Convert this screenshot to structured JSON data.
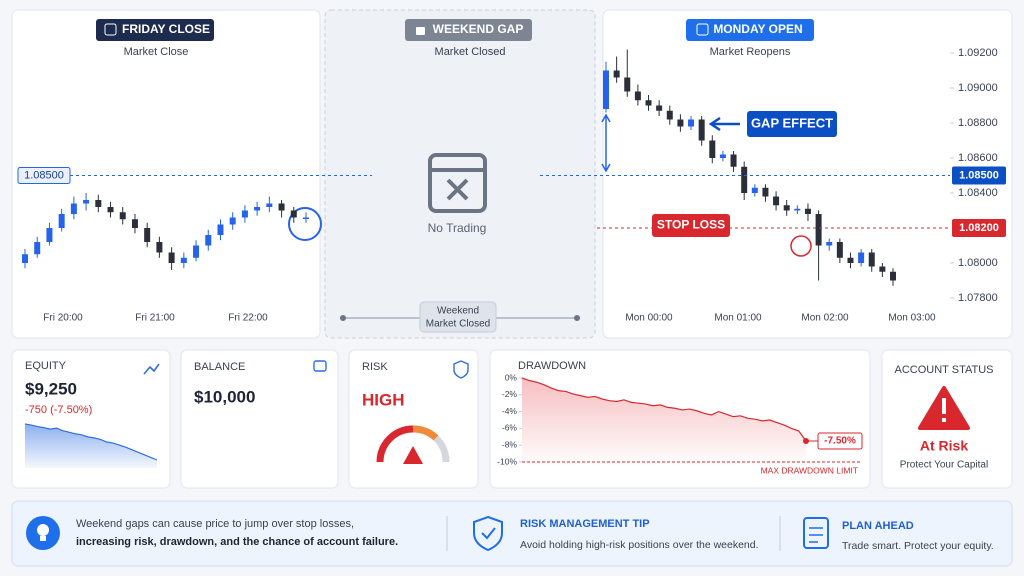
{
  "panels": {
    "friday": {
      "badge": "FRIDAY CLOSE",
      "subtitle": "Market Close"
    },
    "weekend": {
      "badge": "WEEKEND GAP",
      "subtitle": "Market Closed",
      "center": "No Trading",
      "slider": [
        "Weekend",
        "Market Closed"
      ]
    },
    "monday": {
      "badge": "MONDAY OPEN",
      "subtitle": "Market Reopens",
      "annotation": "GAP EFFECT"
    }
  },
  "chart_data": [
    {
      "type": "candlestick",
      "up_color": "#2563eb",
      "down_color": "#2b2f3a",
      "ylim": [
        1.078,
        1.092
      ],
      "level": {
        "value": 1.085,
        "label": "1.08500"
      },
      "x_labels": [
        "Fri 20:00",
        "Fri 21:00",
        "Fri 22:00"
      ],
      "candles": [
        [
          1.08,
          1.0808,
          1.0797,
          1.0805
        ],
        [
          1.0805,
          1.0815,
          1.0803,
          1.0812
        ],
        [
          1.0812,
          1.0823,
          1.081,
          1.082
        ],
        [
          1.082,
          1.0831,
          1.0818,
          1.0828
        ],
        [
          1.0828,
          1.0838,
          1.0825,
          1.0834
        ],
        [
          1.0834,
          1.084,
          1.083,
          1.0836
        ],
        [
          1.0836,
          1.0839,
          1.0829,
          1.0832
        ],
        [
          1.0832,
          1.0835,
          1.0826,
          1.0829
        ],
        [
          1.0829,
          1.0832,
          1.0822,
          1.0825
        ],
        [
          1.0825,
          1.0828,
          1.0817,
          1.082
        ],
        [
          1.082,
          1.0823,
          1.0809,
          1.0812
        ],
        [
          1.0812,
          1.0815,
          1.0803,
          1.0806
        ],
        [
          1.0806,
          1.0809,
          1.0796,
          1.08
        ],
        [
          1.08,
          1.0806,
          1.0797,
          1.0803
        ],
        [
          1.0803,
          1.0813,
          1.0801,
          1.081
        ],
        [
          1.081,
          1.0819,
          1.0807,
          1.0816
        ],
        [
          1.0816,
          1.0825,
          1.0813,
          1.0822
        ],
        [
          1.0822,
          1.0829,
          1.0819,
          1.0826
        ],
        [
          1.0826,
          1.0833,
          1.0823,
          1.083
        ],
        [
          1.083,
          1.0835,
          1.0827,
          1.0832
        ],
        [
          1.0832,
          1.0838,
          1.0829,
          1.0834
        ],
        [
          1.0834,
          1.0836,
          1.0826,
          1.083
        ],
        [
          1.083,
          1.0832,
          1.0823,
          1.0826
        ],
        [
          1.0826,
          1.0829,
          1.0823,
          1.0826
        ]
      ]
    },
    {
      "type": "candlestick",
      "up_color": "#2563eb",
      "down_color": "#2b2f3a",
      "ylim": [
        1.078,
        1.092
      ],
      "yticks": [
        {
          "value": 1.092,
          "label": "1.09200"
        },
        {
          "value": 1.09,
          "label": "1.09000"
        },
        {
          "value": 1.088,
          "label": "1.08800"
        },
        {
          "value": 1.086,
          "label": "1.08600"
        },
        {
          "value": 1.084,
          "label": "1.08400"
        },
        {
          "value": 1.08,
          "label": "1.08000"
        },
        {
          "value": 1.078,
          "label": "1.07800"
        }
      ],
      "level": {
        "value": 1.085,
        "label": "1.08500"
      },
      "stop_loss": {
        "name": "STOP LOSS",
        "value": 1.082,
        "label": "1.08200"
      },
      "x_labels": [
        "Mon 00:00",
        "Mon 01:00",
        "Mon 02:00",
        "Mon 03:00"
      ],
      "candles": [
        [
          1.0888,
          1.0915,
          1.0886,
          1.091
        ],
        [
          1.091,
          1.0918,
          1.0903,
          1.0906
        ],
        [
          1.0906,
          1.0922,
          1.0895,
          1.0898
        ],
        [
          1.0898,
          1.0902,
          1.089,
          1.0893
        ],
        [
          1.0893,
          1.0896,
          1.0887,
          1.089
        ],
        [
          1.089,
          1.0893,
          1.0884,
          1.0887
        ],
        [
          1.0887,
          1.089,
          1.0879,
          1.0882
        ],
        [
          1.0882,
          1.0885,
          1.0875,
          1.0878
        ],
        [
          1.0878,
          1.0884,
          1.0876,
          1.0882
        ],
        [
          1.0882,
          1.0884,
          1.0867,
          1.087
        ],
        [
          1.087,
          1.0873,
          1.0857,
          1.086
        ],
        [
          1.086,
          1.0864,
          1.0858,
          1.0862
        ],
        [
          1.0862,
          1.0864,
          1.0852,
          1.0855
        ],
        [
          1.0855,
          1.0858,
          1.0836,
          1.084
        ],
        [
          1.084,
          1.0845,
          1.0838,
          1.0843
        ],
        [
          1.0843,
          1.0845,
          1.0835,
          1.0838
        ],
        [
          1.0838,
          1.0841,
          1.083,
          1.0833
        ],
        [
          1.0833,
          1.0836,
          1.0827,
          1.083
        ],
        [
          1.083,
          1.0833,
          1.0828,
          1.0831
        ],
        [
          1.0831,
          1.0834,
          1.0824,
          1.0828
        ],
        [
          1.0828,
          1.083,
          1.079,
          1.081
        ],
        [
          1.081,
          1.0814,
          1.0807,
          1.0812
        ],
        [
          1.0812,
          1.0814,
          1.08,
          1.0803
        ],
        [
          1.0803,
          1.0806,
          1.0797,
          1.08
        ],
        [
          1.08,
          1.0808,
          1.0798,
          1.0806
        ],
        [
          1.0806,
          1.0808,
          1.0795,
          1.0798
        ],
        [
          1.0798,
          1.08,
          1.0792,
          1.0795
        ],
        [
          1.0795,
          1.0797,
          1.0787,
          1.079
        ]
      ]
    },
    {
      "type": "line",
      "title": "DRAWDOWN",
      "color": "#d9272e",
      "ylim": [
        -10,
        0
      ],
      "yticks": [
        {
          "value": 0,
          "label": "0%"
        },
        {
          "value": -2,
          "label": "-2%"
        },
        {
          "value": -4,
          "label": "-4%"
        },
        {
          "value": -6,
          "label": "-6%"
        },
        {
          "value": -8,
          "label": "-8%"
        },
        {
          "value": -10,
          "label": "-10%"
        }
      ],
      "limit": {
        "value": -10,
        "label": "MAX DRAWDOWN LIMIT"
      },
      "values": [
        0,
        -0.3,
        -0.5,
        -0.8,
        -1.2,
        -1.5,
        -1.6,
        -1.9,
        -2.1,
        -2.3,
        -2.2,
        -2.5,
        -2.7,
        -2.8,
        -2.6,
        -2.9,
        -3.0,
        -3.1,
        -3.3,
        -3.2,
        -3.5,
        -3.6,
        -3.8,
        -3.7,
        -3.9,
        -4.2,
        -4.4,
        -4.0,
        -4.3,
        -4.6,
        -4.5,
        -4.8,
        -4.9,
        -5.1,
        -5.0,
        -5.3,
        -5.6,
        -6.0,
        -6.3,
        -7.5
      ],
      "value_labels": [
        null,
        null,
        null,
        null,
        null,
        null,
        null,
        null,
        null,
        null,
        null,
        null,
        null,
        null,
        null,
        null,
        null,
        null,
        null,
        null,
        null,
        null,
        null,
        null,
        null,
        null,
        null,
        null,
        null,
        null,
        null,
        null,
        null,
        null,
        null,
        null,
        null,
        null,
        null,
        "-7.50%"
      ]
    },
    {
      "type": "area",
      "color": "#2f6fe0",
      "values": [
        9950,
        9930,
        9900,
        9880,
        9850,
        9870,
        9820,
        9790,
        9760,
        9740,
        9700,
        9680,
        9650,
        9600,
        9580,
        9540,
        9500,
        9450,
        9400,
        9350,
        9300,
        9250
      ]
    }
  ],
  "cards": {
    "equity": {
      "label": "EQUITY",
      "value": "$9,250",
      "change": "-750 (-7.50%)"
    },
    "balance": {
      "label": "BALANCE",
      "value": "$10,000"
    },
    "risk": {
      "label": "RISK",
      "value": "HIGH"
    },
    "status": {
      "label": "ACCOUNT STATUS",
      "value": "At Risk",
      "note": "Protect Your Capital"
    }
  },
  "tips": [
    {
      "lines": [
        "Weekend gaps can cause price to jump over stop losses,",
        "increasing risk, drawdown, and the chance of account failure."
      ]
    },
    {
      "title": "RISK MANAGEMENT TIP",
      "text": "Avoid holding high-risk positions over the weekend."
    },
    {
      "title": "PLAN AHEAD",
      "text": "Trade smart. Protect your equity."
    }
  ]
}
